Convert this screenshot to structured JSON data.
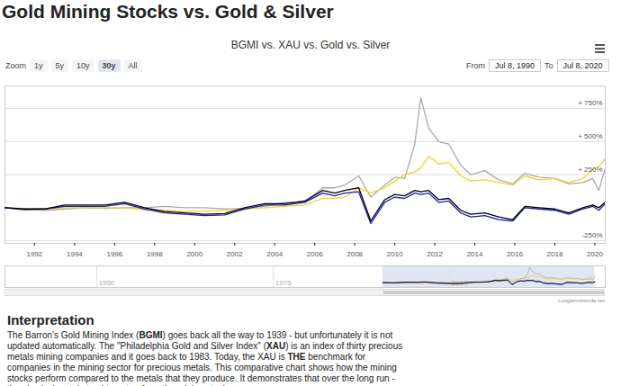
{
  "chart_data": {
    "type": "line",
    "title": "BGMI vs. XAU vs. Gold vs. Silver",
    "x": [
      1990.52,
      1991.5,
      1992.5,
      1993.5,
      1994.5,
      1995.5,
      1996.5,
      1997.5,
      1998.5,
      1999.5,
      2000.5,
      2001.5,
      2002.5,
      2003.5,
      2004.5,
      2005.5,
      2006.4,
      2007,
      2007.5,
      2008.2,
      2008.8,
      2009.5,
      2010,
      2010.5,
      2011,
      2011.3,
      2011.7,
      2012.2,
      2012.7,
      2013.3,
      2013.8,
      2014.5,
      2015.2,
      2015.9,
      2016.5,
      2017.2,
      2018,
      2018.7,
      2019.4,
      2019.9,
      2020.2,
      2020.52
    ],
    "series": [
      {
        "name": "Silver",
        "color": "#aaaaaa",
        "values": [
          0,
          -10,
          -20,
          -10,
          0,
          -5,
          0,
          0,
          10,
          0,
          0,
          -10,
          -5,
          10,
          40,
          40,
          150,
          150,
          170,
          240,
          80,
          170,
          230,
          220,
          480,
          830,
          600,
          500,
          480,
          320,
          250,
          280,
          210,
          180,
          260,
          230,
          220,
          180,
          190,
          220,
          130,
          300
        ]
      },
      {
        "name": "Gold",
        "color": "#f5d327",
        "values": [
          0,
          -5,
          -10,
          0,
          0,
          0,
          0,
          -15,
          -20,
          -30,
          -25,
          -25,
          -10,
          0,
          10,
          20,
          70,
          70,
          80,
          150,
          110,
          150,
          200,
          250,
          270,
          300,
          390,
          330,
          340,
          240,
          200,
          210,
          190,
          170,
          240,
          210,
          220,
          190,
          220,
          290,
          310,
          370
        ]
      },
      {
        "name": "XAU",
        "color": "#1f1fb8",
        "values": [
          0,
          -15,
          -10,
          10,
          10,
          10,
          30,
          -10,
          -40,
          -50,
          -60,
          -55,
          -10,
          20,
          20,
          40,
          110,
          90,
          110,
          120,
          -120,
          40,
          80,
          70,
          110,
          100,
          110,
          40,
          50,
          -40,
          -70,
          -60,
          -90,
          -100,
          0,
          -10,
          -20,
          -50,
          -10,
          10,
          -20,
          30
        ]
      },
      {
        "name": "BGMI",
        "color": "#000000",
        "values": [
          0,
          -10,
          -10,
          20,
          20,
          20,
          40,
          0,
          -30,
          -40,
          -50,
          -45,
          0,
          30,
          30,
          50,
          130,
          110,
          130,
          150,
          -100,
          60,
          100,
          90,
          130,
          120,
          130,
          60,
          70,
          -20,
          -50,
          -40,
          -70,
          -90,
          10,
          0,
          -10,
          -40,
          0,
          20,
          0,
          40
        ]
      }
    ],
    "xlim": [
      1990.52,
      2020.52
    ],
    "xticks": [
      1992,
      1994,
      1996,
      1998,
      2000,
      2002,
      2004,
      2006,
      2008,
      2010,
      2012,
      2014,
      2016,
      2018,
      2020
    ],
    "ylim": [
      -270,
      920
    ],
    "yticks": [
      {
        "value": 750,
        "label": "+ 750%"
      },
      {
        "value": 500,
        "label": "+ 500%"
      },
      {
        "value": 250,
        "label": "+ 250%"
      },
      {
        "value": -250,
        "label": "-250%"
      }
    ],
    "grid": true
  },
  "page": {
    "heading": "Gold Mining Stocks vs. Gold & Silver",
    "zoom_label": "Zoom",
    "zoom_buttons": [
      "1y",
      "5y",
      "10y",
      "30y",
      "All"
    ],
    "zoom_selected": "30y",
    "from_label": "From",
    "from": "Jul 8, 1990",
    "to_label": "To",
    "to": "Jul 8, 2020",
    "navigator": {
      "xlim": [
        1937,
        2022
      ],
      "xticks": [
        1950,
        1975,
        2000
      ]
    },
    "credit": "Longtermtrends.net",
    "section_title": "Interpretation",
    "paragraph": [
      {
        "text": "The Barron's Gold Mining Index (",
        "bold": false
      },
      {
        "text": "BGMI",
        "bold": true
      },
      {
        "text": ") goes back all the way to 1939 - but unfortunately it is not updated automatically. The \"Philadelphia Gold and Silver Index\" (",
        "bold": false
      },
      {
        "text": "XAU",
        "bold": true
      },
      {
        "text": ") is an index of thirty precious metals mining companies and it goes back to 1983. Today, the XAU is ",
        "bold": false
      },
      {
        "text": "THE",
        "bold": true
      },
      {
        "text": " benchmark for companies in the mining sector for precious metals. This comparative chart shows how the mining stocks perform compared to the metals that they produce. It demonstrates that over the long run - the physical metals tend to outperform the mining stocks.",
        "bold": false
      }
    ]
  }
}
